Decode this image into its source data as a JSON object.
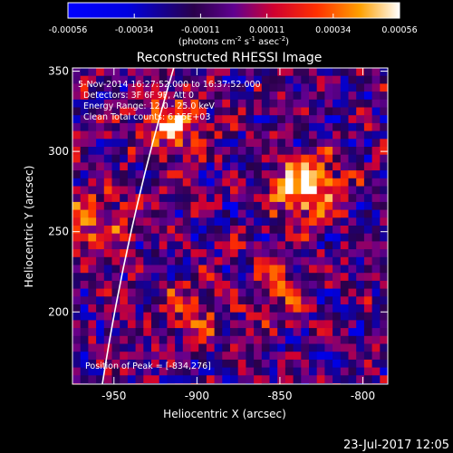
{
  "chart_data": {
    "type": "heatmap",
    "title": "Reconstructed RHESSI Image",
    "xlabel": "Heliocentric X (arcsec)",
    "ylabel": "Heliocentric Y (arcsec)",
    "xlim": [
      -975,
      -785
    ],
    "ylim": [
      155,
      352
    ],
    "xticks": [
      -950,
      -900,
      -850,
      -800
    ],
    "yticks": [
      200,
      250,
      300,
      350
    ],
    "colorbar": {
      "ticks": [
        "-0.00056",
        "-0.00034",
        "-0.00011",
        "0.00011",
        "0.00034",
        "0.00056"
      ],
      "units_prefix": "(photons cm",
      "sup1": "-2",
      "units_mid": " s",
      "sup2": "-1",
      "units_mid2": " asec",
      "sup3": "-2",
      "units_suffix": ")",
      "range": [
        -0.00056,
        0.00056
      ]
    },
    "annotations": [
      "5-Nov-2014 16:27:52.000 to 16:37:52.000",
      "Detectors: 3F 6F 9F, Att 0",
      "Energy Range: 12.0 - 25.0 keV",
      "Clean    Total counts: 6.15E+03"
    ],
    "peak_label": "Position of Peak = [-834,276]",
    "peak": {
      "x": -834,
      "y": 276
    },
    "limb_color": "#ffffff",
    "hotspots": [
      {
        "x": -834,
        "y": 276,
        "strength": 1.0
      },
      {
        "x": -915,
        "y": 315,
        "strength": 0.75
      },
      {
        "x": -960,
        "y": 255,
        "strength": 0.6
      },
      {
        "x": -905,
        "y": 200,
        "strength": 0.45
      },
      {
        "x": -850,
        "y": 215,
        "strength": 0.4
      }
    ]
  },
  "footer": {
    "date": "23-Jul-2017 12:05"
  }
}
